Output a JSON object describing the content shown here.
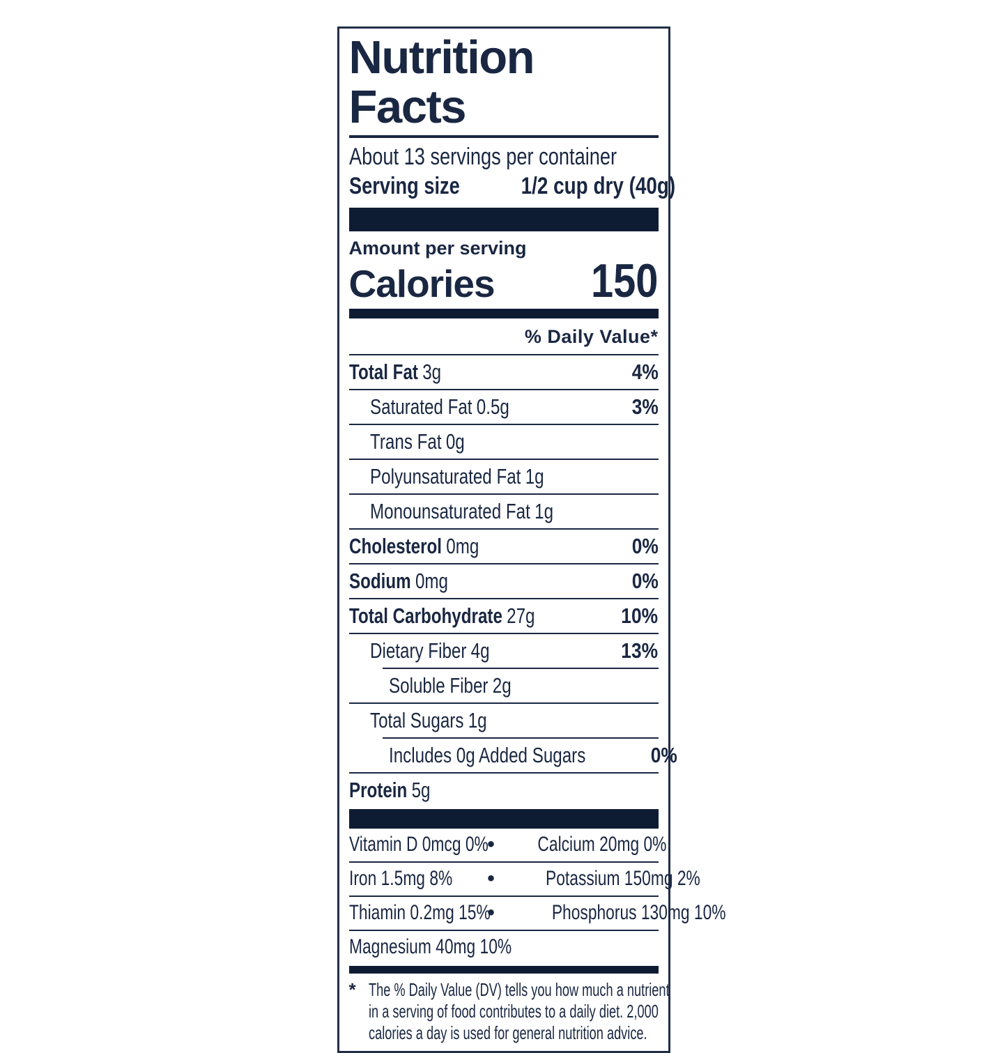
{
  "colors": {
    "ink": "#1a2742",
    "bar": "#0e1c33",
    "border": "#222f4a",
    "background": "#ffffff"
  },
  "label": {
    "title": "Nutrition Facts",
    "servings_line": "About 13 servings per container",
    "serving_size": {
      "label": "Serving size",
      "value": "1/2 cup dry (40g)"
    },
    "calories": {
      "eyebrow": "Amount per serving",
      "label": "Calories",
      "value": "150"
    },
    "daily_value_header": "% Daily Value*",
    "nutrients": [
      {
        "name": "Total Fat",
        "amount": "3g",
        "dv": "4%"
      },
      {
        "name": "Saturated Fat",
        "amount": "0.5g",
        "dv": "3%"
      },
      {
        "name": "Trans Fat",
        "amount": "0g",
        "dv": ""
      },
      {
        "name": "Polyunsaturated Fat",
        "amount": "1g",
        "dv": ""
      },
      {
        "name": "Monounsaturated Fat",
        "amount": "1g",
        "dv": ""
      },
      {
        "name": "Cholesterol",
        "amount": "0mg",
        "dv": "0%"
      },
      {
        "name": "Sodium",
        "amount": "0mg",
        "dv": "0%"
      },
      {
        "name": "Total Carbohydrate",
        "amount": "27g",
        "dv": "10%"
      },
      {
        "name": "Dietary Fiber",
        "amount": "4g",
        "dv": "13%"
      },
      {
        "name": "Soluble Fiber",
        "amount": "2g",
        "dv": ""
      },
      {
        "name": "Total Sugars",
        "amount": "1g",
        "dv": ""
      },
      {
        "name": "Includes 0g Added Sugars",
        "amount": "",
        "dv": "0%"
      },
      {
        "name": "Protein",
        "amount": "5g",
        "dv": ""
      }
    ],
    "micronutrients": [
      {
        "left": "Vitamin D 0mcg 0%",
        "separator": "•",
        "right": "Calcium 20mg 0%"
      },
      {
        "left": "Iron 1.5mg 8%",
        "separator": "•",
        "right": "Potassium 150mg 2%"
      },
      {
        "left": "Thiamin 0.2mg 15%",
        "separator": "•",
        "right": "Phosphorus 130mg 10%"
      },
      {
        "left": "Magnesium 40mg 10%",
        "separator": "",
        "right": ""
      }
    ],
    "footnote": {
      "symbol": "*",
      "lines": [
        "The % Daily Value (DV) tells you how much a nutrient",
        "in a serving of food contributes to a daily diet. 2,000",
        "calories a day is used for general nutrition advice."
      ]
    }
  }
}
